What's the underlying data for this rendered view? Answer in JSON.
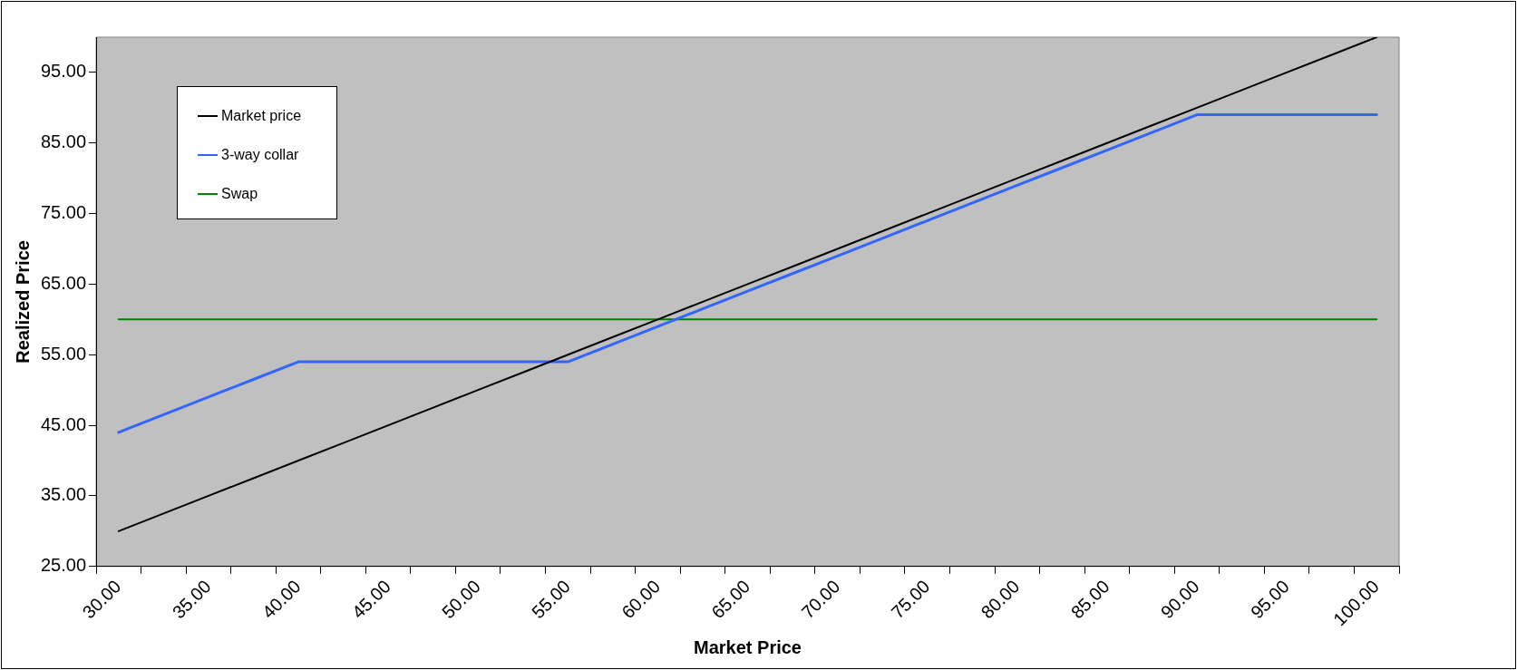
{
  "chart_data": {
    "type": "line",
    "xlabel": "Market Price",
    "ylabel": "Realized Price",
    "categories": [
      "30.00",
      null,
      "35.00",
      null,
      "40.00",
      null,
      "45.00",
      null,
      "50.00",
      null,
      "55.00",
      null,
      "60.00",
      null,
      "65.00",
      null,
      "70.00",
      null,
      "75.00",
      null,
      "80.00",
      null,
      "85.00",
      null,
      "90.00",
      null,
      "95.00",
      null,
      "100.00"
    ],
    "series": [
      {
        "name": "Market price",
        "color": "#000000",
        "values": [
          30,
          32.5,
          35,
          37.5,
          40,
          42.5,
          45,
          47.5,
          50,
          52.5,
          55,
          57.5,
          60,
          62.5,
          65,
          67.5,
          70,
          72.5,
          75,
          77.5,
          80,
          82.5,
          85,
          87.5,
          90,
          92.5,
          95,
          97.5,
          100
        ]
      },
      {
        "name": "3-way collar",
        "color": "#3366ff",
        "values": [
          44,
          46.5,
          49,
          51.5,
          54,
          54,
          54,
          54,
          54,
          54,
          54,
          56.5,
          59,
          61.5,
          64,
          66.5,
          69,
          71.5,
          74,
          76.5,
          79,
          81.5,
          84,
          86.5,
          89,
          89,
          89,
          89,
          89
        ]
      },
      {
        "name": "Swap",
        "color": "#008000",
        "values": [
          60,
          60,
          60,
          60,
          60,
          60,
          60,
          60,
          60,
          60,
          60,
          60,
          60,
          60,
          60,
          60,
          60,
          60,
          60,
          60,
          60,
          60,
          60,
          60,
          60,
          60,
          60,
          60,
          60
        ]
      }
    ],
    "ylim": [
      25,
      100
    ],
    "yticks": [
      {
        "value": 25,
        "label": "25.00"
      },
      {
        "value": 35,
        "label": "35.00"
      },
      {
        "value": 45,
        "label": "45.00"
      },
      {
        "value": 55,
        "label": "55.00"
      },
      {
        "value": 65,
        "label": "65.00"
      },
      {
        "value": 75,
        "label": "75.00"
      },
      {
        "value": 85,
        "label": "85.00"
      },
      {
        "value": 95,
        "label": "95.00"
      }
    ],
    "grid": false,
    "legend": "top left",
    "marker": "none",
    "line_style": "solid"
  }
}
